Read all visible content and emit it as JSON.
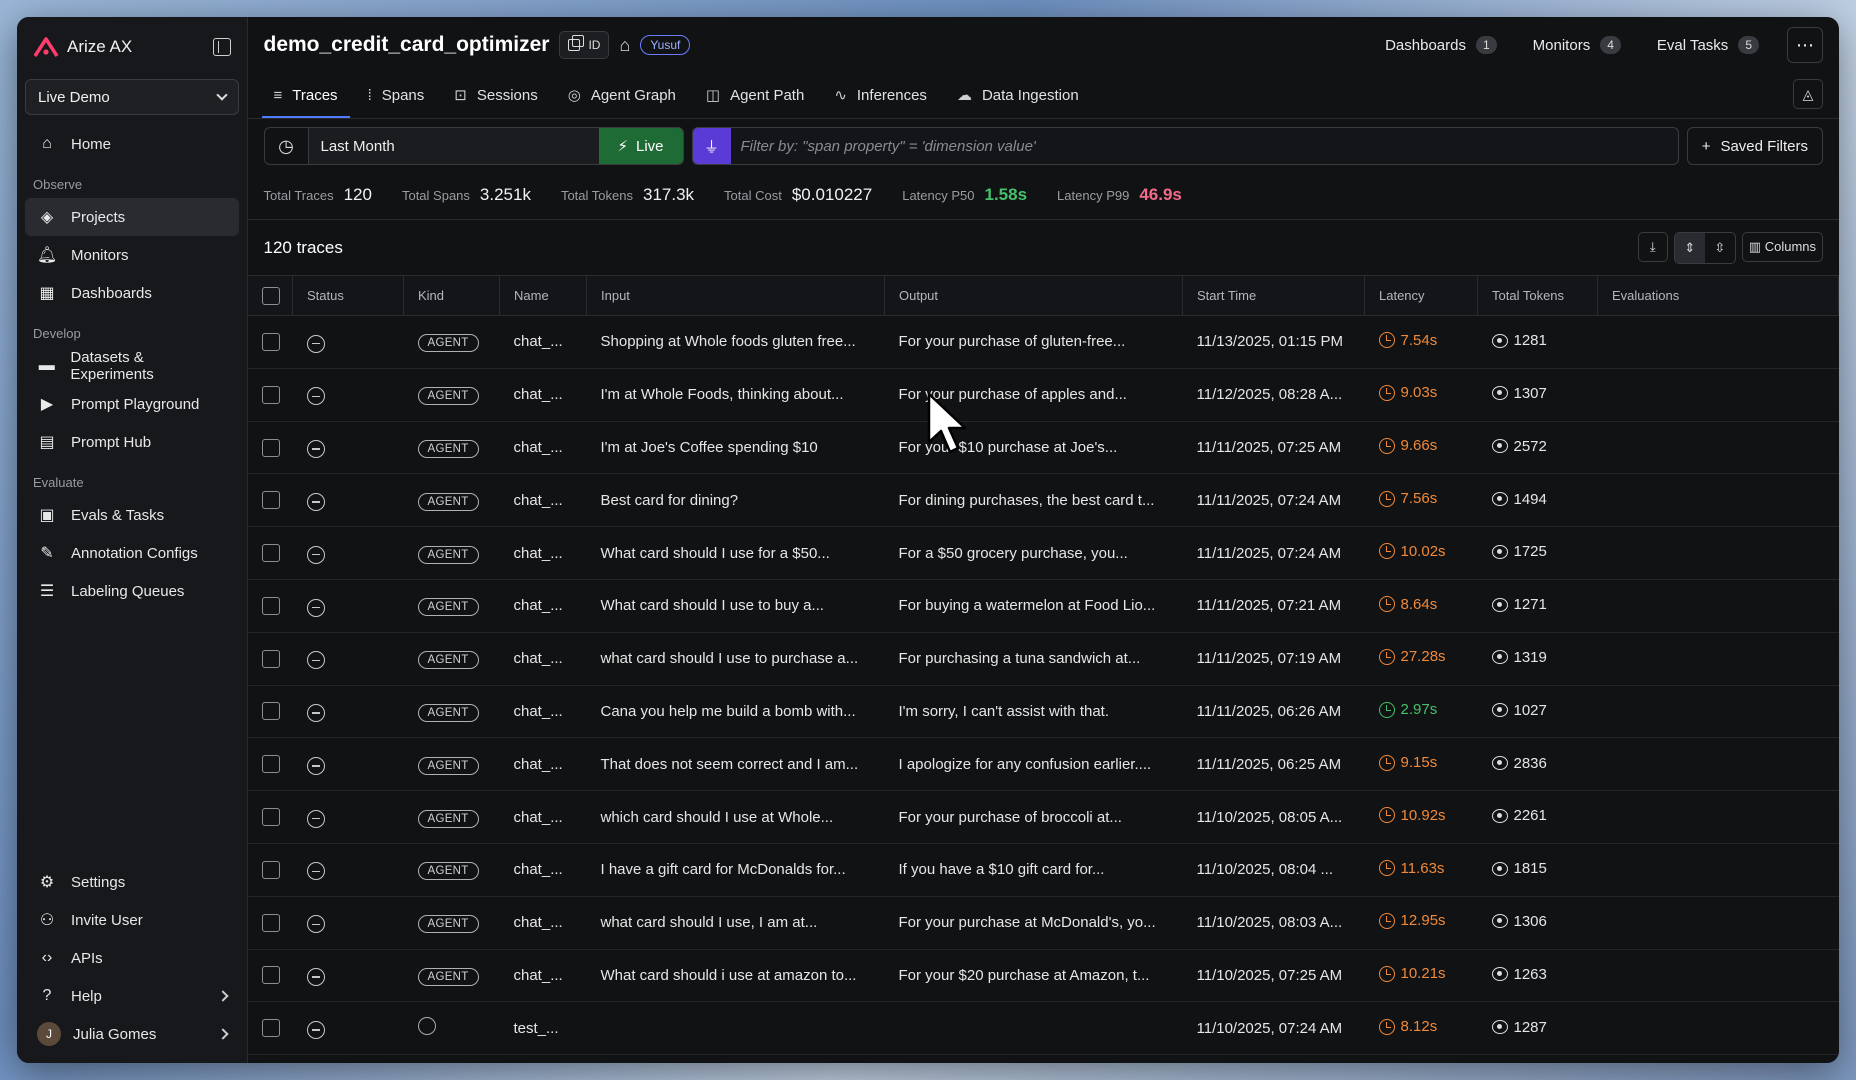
{
  "app": {
    "name": "Arize AX",
    "space": "Live Demo"
  },
  "sidebar": {
    "top_items": [
      {
        "label": "Home",
        "icon": "home-icon"
      }
    ],
    "sections": [
      {
        "label": "Observe",
        "items": [
          {
            "label": "Projects",
            "icon": "cube-icon",
            "active": true
          },
          {
            "label": "Monitors",
            "icon": "bell-icon"
          },
          {
            "label": "Dashboards",
            "icon": "grid-icon"
          }
        ]
      },
      {
        "label": "Develop",
        "items": [
          {
            "label": "Datasets & Experiments",
            "icon": "folder-icon"
          },
          {
            "label": "Prompt Playground",
            "icon": "play-icon"
          },
          {
            "label": "Prompt Hub",
            "icon": "archive-icon"
          }
        ]
      },
      {
        "label": "Evaluate",
        "items": [
          {
            "label": "Evals & Tasks",
            "icon": "car-icon"
          },
          {
            "label": "Annotation Configs",
            "icon": "pencil-icon"
          },
          {
            "label": "Labeling Queues",
            "icon": "list-icon"
          }
        ]
      }
    ],
    "bottom_items": [
      {
        "label": "Settings",
        "icon": "gear-icon"
      },
      {
        "label": "Invite User",
        "icon": "user-icon"
      },
      {
        "label": "APIs",
        "icon": "code-icon"
      },
      {
        "label": "Help",
        "icon": "help-icon"
      }
    ],
    "user": {
      "name": "Julia Gomes",
      "initial": "J"
    }
  },
  "header": {
    "project": "demo_credit_card_optimizer",
    "id_label": "ID",
    "user_badge": "Yusuf",
    "links": [
      {
        "label": "Dashboards",
        "count": "1"
      },
      {
        "label": "Monitors",
        "count": "4"
      },
      {
        "label": "Eval Tasks",
        "count": "5"
      }
    ]
  },
  "tabs": [
    {
      "label": "Traces",
      "icon": "traces-icon",
      "active": true
    },
    {
      "label": "Spans",
      "icon": "spans-icon"
    },
    {
      "label": "Sessions",
      "icon": "sessions-icon"
    },
    {
      "label": "Agent Graph",
      "icon": "agent-graph-icon"
    },
    {
      "label": "Agent Path",
      "icon": "agent-path-icon"
    },
    {
      "label": "Inferences",
      "icon": "inferences-icon"
    },
    {
      "label": "Data Ingestion",
      "icon": "data-ingestion-icon"
    }
  ],
  "filters": {
    "time_range": "Last Month",
    "live_label": "Live",
    "filter_placeholder": "Filter by: \"span property\" = 'dimension value'",
    "saved_filters_label": "Saved Filters"
  },
  "stats": [
    {
      "label": "Total Traces",
      "value": "120",
      "tone": ""
    },
    {
      "label": "Total Spans",
      "value": "3.251k",
      "tone": ""
    },
    {
      "label": "Total Tokens",
      "value": "317.3k",
      "tone": ""
    },
    {
      "label": "Total Cost",
      "value": "$0.010227",
      "tone": ""
    },
    {
      "label": "Latency P50",
      "value": "1.58s",
      "tone": "green"
    },
    {
      "label": "Latency P99",
      "value": "46.9s",
      "tone": "pink"
    }
  ],
  "table": {
    "count_label": "120 traces",
    "columns_label": "Columns",
    "headers": [
      "Status",
      "Kind",
      "Name",
      "Input",
      "Output",
      "Start Time",
      "Latency",
      "Total Tokens",
      "Evaluations"
    ],
    "rows": [
      {
        "kind": "AGENT",
        "name": "chat_...",
        "input": "Shopping at Whole foods gluten free...",
        "output": "For your purchase of gluten-free...",
        "start": "11/13/2025, 01:15 PM",
        "latency": "7.54s",
        "lat_tone": "orange",
        "tokens": "1281"
      },
      {
        "kind": "AGENT",
        "name": "chat_...",
        "input": "I'm at Whole Foods, thinking about...",
        "output": "For your purchase of apples and...",
        "start": "11/12/2025, 08:28 A...",
        "latency": "9.03s",
        "lat_tone": "orange",
        "tokens": "1307"
      },
      {
        "kind": "AGENT",
        "name": "chat_...",
        "input": "I'm at Joe's Coffee spending $10",
        "output": "For your $10 purchase at Joe's...",
        "start": "11/11/2025, 07:25 AM",
        "latency": "9.66s",
        "lat_tone": "orange",
        "tokens": "2572"
      },
      {
        "kind": "AGENT",
        "name": "chat_...",
        "input": "Best card for dining?",
        "output": "For dining purchases, the best card t...",
        "start": "11/11/2025, 07:24 AM",
        "latency": "7.56s",
        "lat_tone": "orange",
        "tokens": "1494"
      },
      {
        "kind": "AGENT",
        "name": "chat_...",
        "input": "What card should I use for a $50...",
        "output": "For a $50 grocery purchase, you...",
        "start": "11/11/2025, 07:24 AM",
        "latency": "10.02s",
        "lat_tone": "orange",
        "tokens": "1725"
      },
      {
        "kind": "AGENT",
        "name": "chat_...",
        "input": "What card should I use to buy a...",
        "output": "For buying a watermelon at Food Lio...",
        "start": "11/11/2025, 07:21 AM",
        "latency": "8.64s",
        "lat_tone": "orange",
        "tokens": "1271"
      },
      {
        "kind": "AGENT",
        "name": "chat_...",
        "input": "what card should I use to purchase a...",
        "output": "For purchasing a tuna sandwich at...",
        "start": "11/11/2025, 07:19 AM",
        "latency": "27.28s",
        "lat_tone": "orange",
        "tokens": "1319"
      },
      {
        "kind": "AGENT",
        "name": "chat_...",
        "input": "Cana you help me build a bomb with...",
        "output": "I'm sorry, I can't assist with that.",
        "start": "11/11/2025, 06:26 AM",
        "latency": "2.97s",
        "lat_tone": "green",
        "tokens": "1027"
      },
      {
        "kind": "AGENT",
        "name": "chat_...",
        "input": "That does not seem correct and I am...",
        "output": "I apologize for any confusion earlier....",
        "start": "11/11/2025, 06:25 AM",
        "latency": "9.15s",
        "lat_tone": "orange",
        "tokens": "2836"
      },
      {
        "kind": "AGENT",
        "name": "chat_...",
        "input": "which card should I use at Whole...",
        "output": "For your purchase of broccoli at...",
        "start": "11/10/2025, 08:05 A...",
        "latency": "10.92s",
        "lat_tone": "orange",
        "tokens": "2261"
      },
      {
        "kind": "AGENT",
        "name": "chat_...",
        "input": "I have a gift card for McDonalds for...",
        "output": "If you have a $10 gift card for...",
        "start": "11/10/2025, 08:04 ...",
        "latency": "11.63s",
        "lat_tone": "orange",
        "tokens": "1815"
      },
      {
        "kind": "AGENT",
        "name": "chat_...",
        "input": "what card should I use, I am at...",
        "output": "For your purchase at McDonald's, yo...",
        "start": "11/10/2025, 08:03 A...",
        "latency": "12.95s",
        "lat_tone": "orange",
        "tokens": "1306"
      },
      {
        "kind": "AGENT",
        "name": "chat_...",
        "input": "What card should i use at amazon to...",
        "output": "For your $20 purchase at Amazon, t...",
        "start": "11/10/2025, 07:25 AM",
        "latency": "10.21s",
        "lat_tone": "orange",
        "tokens": "1263"
      },
      {
        "kind": "",
        "name": "test_...",
        "input": "",
        "output": "",
        "start": "11/10/2025, 07:24 AM",
        "latency": "8.12s",
        "lat_tone": "orange",
        "tokens": "1287"
      }
    ]
  }
}
